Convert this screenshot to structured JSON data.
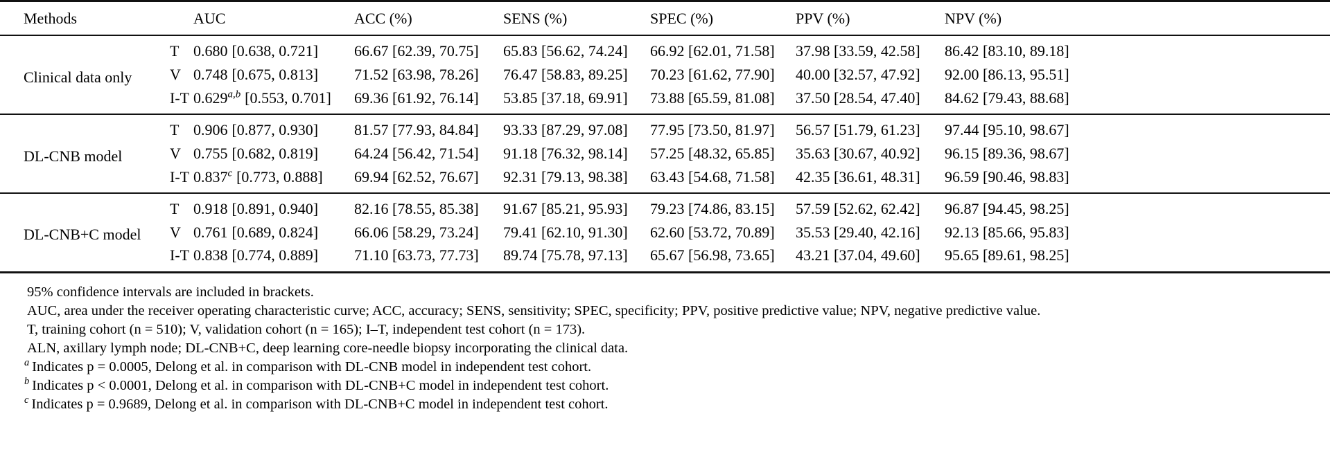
{
  "table": {
    "headers": {
      "methods": "Methods",
      "cohort": "",
      "auc": "AUC",
      "acc": "ACC (%)",
      "sens": "SENS (%)",
      "spec": "SPEC (%)",
      "ppv": "PPV (%)",
      "npv": "NPV (%)"
    },
    "groups": [
      {
        "method": "Clinical data only",
        "rows": [
          {
            "cohort": "T",
            "auc_value": "0.680",
            "auc_sup": "",
            "auc_ci": "[0.638, 0.721]",
            "acc": "66.67 [62.39, 70.75]",
            "sens": "65.83 [56.62, 74.24]",
            "spec": "66.92 [62.01, 71.58]",
            "ppv": "37.98 [33.59, 42.58]",
            "npv": "86.42 [83.10, 89.18]"
          },
          {
            "cohort": "V",
            "auc_value": "0.748",
            "auc_sup": "",
            "auc_ci": "[0.675, 0.813]",
            "acc": "71.52 [63.98, 78.26]",
            "sens": "76.47 [58.83, 89.25]",
            "spec": "70.23 [61.62, 77.90]",
            "ppv": "40.00 [32.57, 47.92]",
            "npv": "92.00 [86.13, 95.51]"
          },
          {
            "cohort": "I-T",
            "auc_value": "0.629",
            "auc_sup": "a,b",
            "auc_ci": "[0.553, 0.701]",
            "acc": "69.36 [61.92, 76.14]",
            "sens": "53.85 [37.18, 69.91]",
            "spec": "73.88 [65.59, 81.08]",
            "ppv": "37.50 [28.54, 47.40]",
            "npv": "84.62 [79.43, 88.68]"
          }
        ]
      },
      {
        "method": "DL-CNB model",
        "rows": [
          {
            "cohort": "T",
            "auc_value": "0.906",
            "auc_sup": "",
            "auc_ci": "[0.877, 0.930]",
            "acc": "81.57 [77.93, 84.84]",
            "sens": "93.33 [87.29, 97.08]",
            "spec": "77.95 [73.50, 81.97]",
            "ppv": "56.57 [51.79, 61.23]",
            "npv": "97.44 [95.10, 98.67]"
          },
          {
            "cohort": "V",
            "auc_value": "0.755",
            "auc_sup": "",
            "auc_ci": "[0.682, 0.819]",
            "acc": "64.24 [56.42, 71.54]",
            "sens": "91.18 [76.32, 98.14]",
            "spec": "57.25 [48.32, 65.85]",
            "ppv": "35.63 [30.67, 40.92]",
            "npv": "96.15 [89.36, 98.67]"
          },
          {
            "cohort": "I-T",
            "auc_value": "0.837",
            "auc_sup": "c",
            "auc_ci": "[0.773, 0.888]",
            "acc": "69.94 [62.52, 76.67]",
            "sens": "92.31 [79.13, 98.38]",
            "spec": "63.43 [54.68, 71.58]",
            "ppv": "42.35 [36.61, 48.31]",
            "npv": "96.59 [90.46, 98.83]"
          }
        ]
      },
      {
        "method": "DL-CNB+C model",
        "rows": [
          {
            "cohort": "T",
            "auc_value": "0.918",
            "auc_sup": "",
            "auc_ci": "[0.891, 0.940]",
            "acc": "82.16 [78.55, 85.38]",
            "sens": "91.67 [85.21, 95.93]",
            "spec": "79.23 [74.86, 83.15]",
            "ppv": "57.59 [52.62, 62.42]",
            "npv": "96.87 [94.45, 98.25]"
          },
          {
            "cohort": "V",
            "auc_value": "0.761",
            "auc_sup": "",
            "auc_ci": "[0.689, 0.824]",
            "acc": "66.06 [58.29, 73.24]",
            "sens": "79.41 [62.10, 91.30]",
            "spec": "62.60 [53.72, 70.89]",
            "ppv": "35.53 [29.40, 42.16]",
            "npv": "92.13 [85.66, 95.83]"
          },
          {
            "cohort": "I-T",
            "auc_value": "0.838",
            "auc_sup": "",
            "auc_ci": "[0.774, 0.889]",
            "acc": "71.10 [63.73, 77.73]",
            "sens": "89.74 [75.78, 97.13]",
            "spec": "65.67 [56.98, 73.65]",
            "ppv": "43.21 [37.04, 49.60]",
            "npv": "95.65 [89.61, 98.25]"
          }
        ]
      }
    ]
  },
  "footnotes": [
    {
      "marker": "",
      "text": "95% confidence intervals are included in brackets."
    },
    {
      "marker": "",
      "text": "AUC, area under the receiver operating characteristic curve; ACC, accuracy; SENS, sensitivity; SPEC, specificity; PPV, positive predictive value; NPV, negative predictive value."
    },
    {
      "marker": "",
      "text": "T, training cohort (n = 510); V, validation cohort (n = 165); I–T, independent test cohort (n = 173)."
    },
    {
      "marker": "",
      "text": "ALN, axillary lymph node; DL-CNB+C, deep learning core-needle biopsy incorporating the clinical data."
    },
    {
      "marker": "a",
      "text": "Indicates p = 0.0005, Delong et al. in comparison with DL-CNB model in independent test cohort."
    },
    {
      "marker": "b",
      "text": "Indicates p < 0.0001, Delong et al. in comparison with DL-CNB+C model in independent test cohort."
    },
    {
      "marker": "c",
      "text": "Indicates p = 0.9689, Delong et al. in comparison with DL-CNB+C model in independent test cohort."
    }
  ]
}
